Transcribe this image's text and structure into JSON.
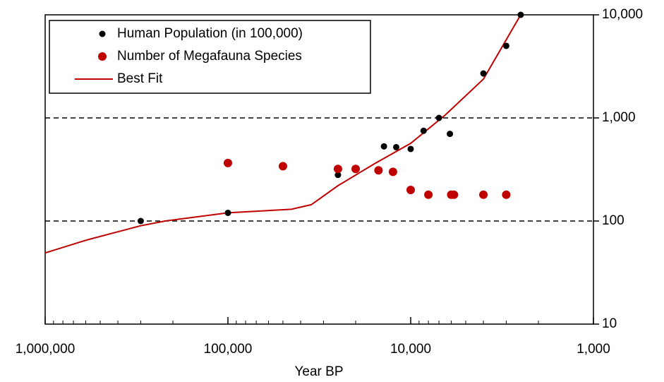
{
  "chart_data": {
    "type": "scatter",
    "xlabel": "Year BP",
    "xscale": "log",
    "yscale": "log",
    "xlim": [
      1000000,
      1000
    ],
    "ylim": [
      10,
      10000
    ],
    "xticks": [
      {
        "value": 1000000,
        "label": "1,000,000"
      },
      {
        "value": 100000,
        "label": "100,000"
      },
      {
        "value": 10000,
        "label": "10,000"
      },
      {
        "value": 1000,
        "label": "1,000"
      }
    ],
    "xminorticks": [
      900000,
      800000,
      700000,
      600000,
      500000,
      400000,
      300000,
      200000,
      90000,
      80000,
      70000,
      60000,
      50000,
      40000,
      30000,
      20000,
      9000,
      8000,
      7000,
      6000,
      5000,
      4000,
      3000,
      2000
    ],
    "yticks": [
      10,
      100,
      {
        "value": 1000,
        "label": "1,000"
      },
      {
        "value": 10000,
        "label": "10,000"
      }
    ],
    "yaxis_side": "right",
    "grid_values": [
      100,
      1000
    ],
    "grid_style": "dashed",
    "legend": "upper left",
    "series": [
      {
        "name": "Human Population (in 100,000)",
        "mode": "markers",
        "color": "#000000",
        "x": [
          300000,
          100000,
          25000,
          14000,
          12000,
          10000,
          8500,
          7000,
          6100,
          4000,
          3000,
          2500
        ],
        "values": [
          100,
          120,
          280,
          530,
          520,
          500,
          750,
          1000,
          700,
          2700,
          5000,
          10000
        ]
      },
      {
        "name": "Number of Megafauna Species",
        "mode": "markers",
        "color": "#c00000",
        "x": [
          100000,
          50000,
          25000,
          20000,
          15000,
          12500,
          10000,
          8000,
          6000,
          5800,
          4000,
          3000
        ],
        "values": [
          365,
          340,
          320,
          320,
          310,
          300,
          200,
          180,
          180,
          180,
          180,
          180
        ]
      },
      {
        "name": "Best Fit",
        "mode": "lines",
        "color": "#c00000",
        "x": [
          1000000,
          600000,
          300000,
          220000,
          100000,
          45000,
          35000,
          25000,
          15800,
          10000,
          6500,
          4000,
          2500
        ],
        "values": [
          49,
          65,
          90,
          100,
          120,
          130,
          144,
          220,
          359,
          567,
          1060,
          2380,
          10000
        ]
      }
    ]
  }
}
